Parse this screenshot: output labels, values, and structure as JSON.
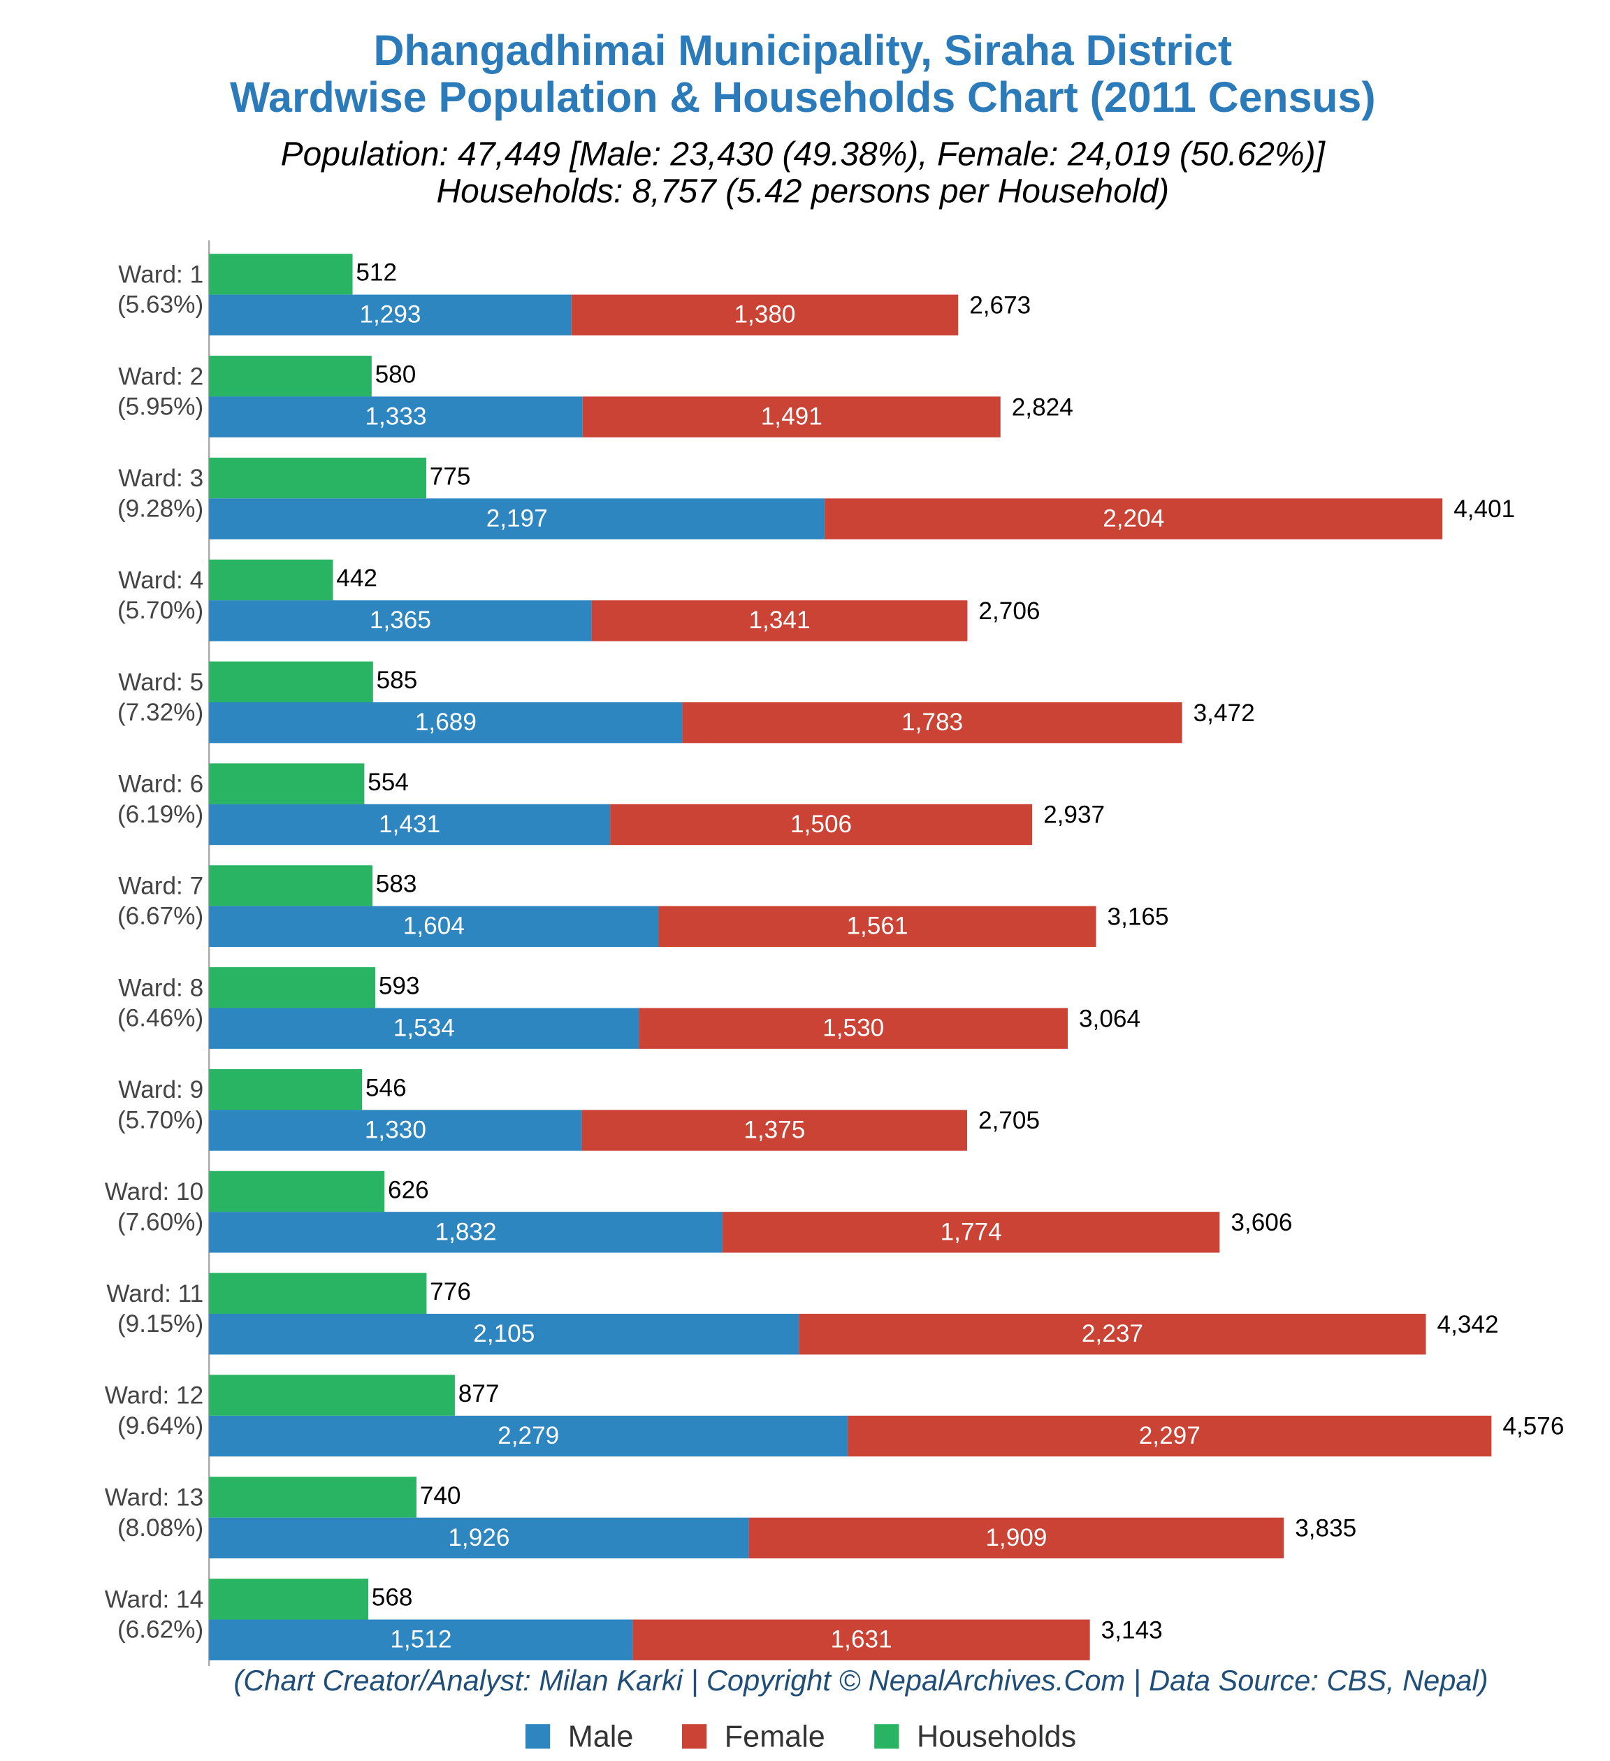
{
  "chart_data": {
    "type": "bar",
    "title_lines": [
      "Dhangadhimai Municipality, Siraha District",
      "Wardwise Population & Households Chart (2011 Census)"
    ],
    "subtitle_lines": [
      "Population: 47,449 [Male: 23,430 (49.38%), Female: 24,019 (50.62%)]",
      "Households: 8,757 (5.42 persons per Household)"
    ],
    "footnote": "(Chart Creator/Analyst: Milan Karki | Copyright © NepalArchives.Com | Data Source: CBS, Nepal)",
    "categories": [
      "Ward: 1",
      "Ward: 2",
      "Ward: 3",
      "Ward: 4",
      "Ward: 5",
      "Ward: 6",
      "Ward: 7",
      "Ward: 8",
      "Ward: 9",
      "Ward: 10",
      "Ward: 11",
      "Ward: 12",
      "Ward: 13",
      "Ward: 14"
    ],
    "category_notes": [
      "(5.63%)",
      "(5.95%)",
      "(9.28%)",
      "(5.70%)",
      "(7.32%)",
      "(6.19%)",
      "(6.67%)",
      "(6.46%)",
      "(5.70%)",
      "(7.60%)",
      "(9.15%)",
      "(9.64%)",
      "(8.08%)",
      "(6.62%)"
    ],
    "series": [
      {
        "name": "Male",
        "color": "#2e86c1",
        "values": [
          1293,
          1333,
          2197,
          1365,
          1689,
          1431,
          1604,
          1534,
          1330,
          1832,
          2105,
          2279,
          1926,
          1512
        ],
        "value_labels": [
          "1,293",
          "1,333",
          "2,197",
          "1,365",
          "1,689",
          "1,431",
          "1,604",
          "1,534",
          "1,330",
          "1,832",
          "2,105",
          "2,279",
          "1,926",
          "1,512"
        ]
      },
      {
        "name": "Female",
        "color": "#cb4335",
        "values": [
          1380,
          1491,
          2204,
          1341,
          1783,
          1506,
          1561,
          1530,
          1375,
          1774,
          2237,
          2297,
          1909,
          1631
        ],
        "value_labels": [
          "1,380",
          "1,491",
          "2,204",
          "1,341",
          "1,783",
          "1,506",
          "1,561",
          "1,530",
          "1,375",
          "1,774",
          "2,237",
          "2,297",
          "1,909",
          "1,631"
        ]
      },
      {
        "name": "Households",
        "color": "#28b463",
        "values": [
          512,
          580,
          775,
          442,
          585,
          554,
          583,
          593,
          546,
          626,
          776,
          877,
          740,
          568
        ]
      }
    ],
    "totals": [
      2673,
      2824,
      4401,
      2706,
      3472,
      2937,
      3165,
      3064,
      2705,
      3606,
      4342,
      4576,
      3835,
      3143
    ],
    "total_labels": [
      "2,673",
      "2,824",
      "4,401",
      "2,706",
      "3,472",
      "2,937",
      "3,165",
      "3,064",
      "2,705",
      "3,606",
      "4,342",
      "4,576",
      "3,835",
      "3,143"
    ],
    "xlim": [
      0,
      4600
    ],
    "legend": "bottom"
  }
}
